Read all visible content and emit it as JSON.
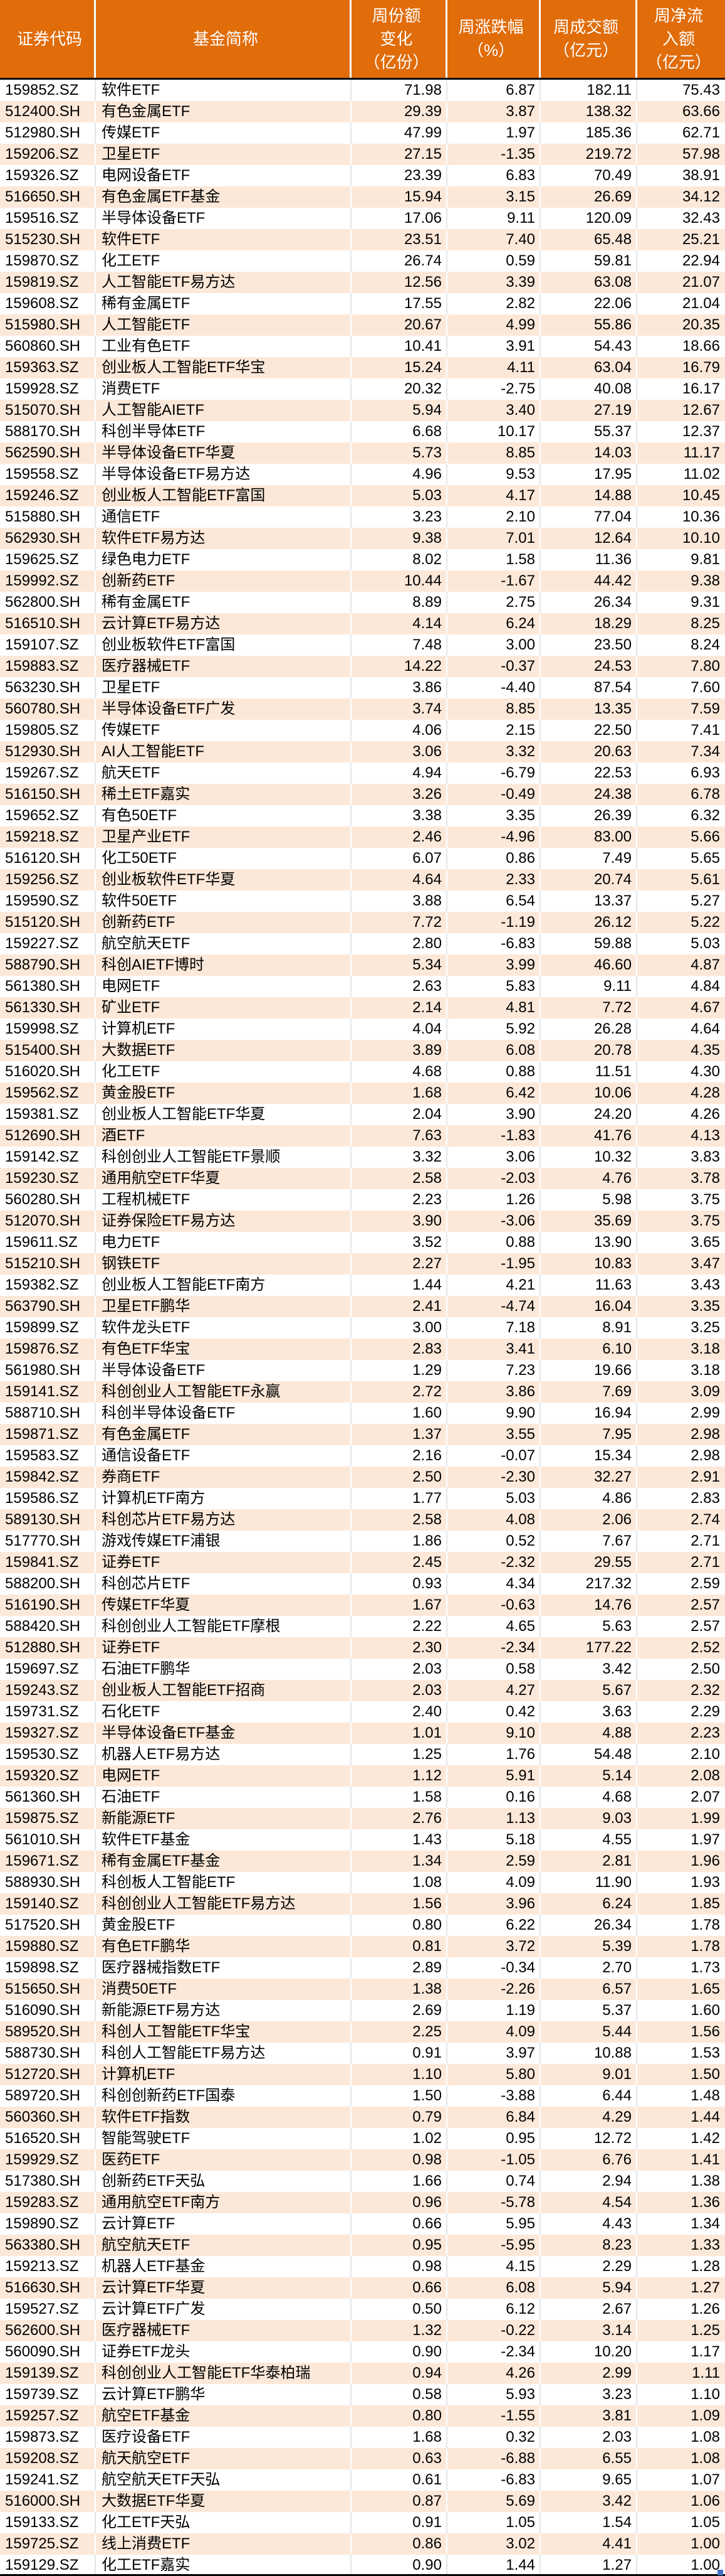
{
  "colors": {
    "header_bg": "#E06C0A",
    "header_text": "#FFFFFF",
    "row_odd_bg": "#FFFFFF",
    "row_even_bg": "#FCE8D9",
    "text": "#000000",
    "grid_line_on_peach": "#FFFFFF",
    "grid_line_on_white": "#E6E6E6",
    "header_divider": "#000000",
    "bottom_border": "#000000",
    "selection_handle": "#4472C4"
  },
  "table": {
    "columns": [
      {
        "id": "code",
        "lines": [
          "证券代码"
        ]
      },
      {
        "id": "name",
        "lines": [
          "基金简称"
        ]
      },
      {
        "id": "share_change",
        "lines": [
          "周份额",
          "变化",
          "（亿份）"
        ]
      },
      {
        "id": "pct_change",
        "lines": [
          "周涨跌幅",
          "（%）"
        ]
      },
      {
        "id": "turnover",
        "lines": [
          "周成交额",
          "（亿元）"
        ]
      },
      {
        "id": "net_inflow",
        "lines": [
          "周净流",
          "入额",
          "（亿元）"
        ]
      }
    ],
    "rows": [
      [
        "159852.SZ",
        "软件ETF",
        "71.98",
        "6.87",
        "182.11",
        "75.43"
      ],
      [
        "512400.SH",
        "有色金属ETF",
        "29.39",
        "3.87",
        "138.32",
        "63.66"
      ],
      [
        "512980.SH",
        "传媒ETF",
        "47.99",
        "1.97",
        "185.36",
        "62.71"
      ],
      [
        "159206.SZ",
        "卫星ETF",
        "27.15",
        "-1.35",
        "219.72",
        "57.98"
      ],
      [
        "159326.SZ",
        "电网设备ETF",
        "23.39",
        "6.83",
        "70.49",
        "38.91"
      ],
      [
        "516650.SH",
        "有色金属ETF基金",
        "15.94",
        "3.15",
        "26.69",
        "34.12"
      ],
      [
        "159516.SZ",
        "半导体设备ETF",
        "17.06",
        "9.11",
        "120.09",
        "32.43"
      ],
      [
        "515230.SH",
        "软件ETF",
        "23.51",
        "7.40",
        "65.48",
        "25.21"
      ],
      [
        "159870.SZ",
        "化工ETF",
        "26.74",
        "0.59",
        "59.81",
        "22.94"
      ],
      [
        "159819.SZ",
        "人工智能ETF易方达",
        "12.56",
        "3.39",
        "63.08",
        "21.07"
      ],
      [
        "159608.SZ",
        "稀有金属ETF",
        "17.55",
        "2.82",
        "22.06",
        "21.04"
      ],
      [
        "515980.SH",
        "人工智能ETF",
        "20.67",
        "4.99",
        "55.86",
        "20.35"
      ],
      [
        "560860.SH",
        "工业有色ETF",
        "10.41",
        "3.91",
        "54.43",
        "18.66"
      ],
      [
        "159363.SZ",
        "创业板人工智能ETF华宝",
        "15.24",
        "4.11",
        "63.04",
        "16.79"
      ],
      [
        "159928.SZ",
        "消费ETF",
        "20.32",
        "-2.75",
        "40.08",
        "16.17"
      ],
      [
        "515070.SH",
        "人工智能AIETF",
        "5.94",
        "3.40",
        "27.19",
        "12.67"
      ],
      [
        "588170.SH",
        "科创半导体ETF",
        "6.68",
        "10.17",
        "55.37",
        "12.37"
      ],
      [
        "562590.SH",
        "半导体设备ETF华夏",
        "5.73",
        "8.85",
        "14.03",
        "11.17"
      ],
      [
        "159558.SZ",
        "半导体设备ETF易方达",
        "4.96",
        "9.53",
        "17.95",
        "11.02"
      ],
      [
        "159246.SZ",
        "创业板人工智能ETF富国",
        "5.03",
        "4.17",
        "14.88",
        "10.45"
      ],
      [
        "515880.SH",
        "通信ETF",
        "3.23",
        "2.10",
        "77.04",
        "10.36"
      ],
      [
        "562930.SH",
        "软件ETF易方达",
        "9.38",
        "7.01",
        "12.64",
        "10.10"
      ],
      [
        "159625.SZ",
        "绿色电力ETF",
        "8.02",
        "1.58",
        "11.36",
        "9.81"
      ],
      [
        "159992.SZ",
        "创新药ETF",
        "10.44",
        "-1.67",
        "44.42",
        "9.38"
      ],
      [
        "562800.SH",
        "稀有金属ETF",
        "8.89",
        "2.75",
        "26.34",
        "9.31"
      ],
      [
        "516510.SH",
        "云计算ETF易方达",
        "4.14",
        "6.24",
        "18.29",
        "8.25"
      ],
      [
        "159107.SZ",
        "创业板软件ETF富国",
        "7.48",
        "3.00",
        "23.50",
        "8.24"
      ],
      [
        "159883.SZ",
        "医疗器械ETF",
        "14.22",
        "-0.37",
        "24.53",
        "7.80"
      ],
      [
        "563230.SH",
        "卫星ETF",
        "3.86",
        "-4.40",
        "87.54",
        "7.60"
      ],
      [
        "560780.SH",
        "半导体设备ETF广发",
        "3.74",
        "8.85",
        "13.35",
        "7.59"
      ],
      [
        "159805.SZ",
        "传媒ETF",
        "4.06",
        "2.15",
        "22.50",
        "7.41"
      ],
      [
        "512930.SH",
        "AI人工智能ETF",
        "3.06",
        "3.32",
        "20.63",
        "7.34"
      ],
      [
        "159267.SZ",
        "航天ETF",
        "4.94",
        "-6.79",
        "22.53",
        "6.93"
      ],
      [
        "516150.SH",
        "稀土ETF嘉实",
        "3.26",
        "-0.49",
        "24.38",
        "6.78"
      ],
      [
        "159652.SZ",
        "有色50ETF",
        "3.38",
        "3.35",
        "26.39",
        "6.32"
      ],
      [
        "159218.SZ",
        "卫星产业ETF",
        "2.46",
        "-4.96",
        "83.00",
        "5.66"
      ],
      [
        "516120.SH",
        "化工50ETF",
        "6.07",
        "0.86",
        "7.49",
        "5.65"
      ],
      [
        "159256.SZ",
        "创业板软件ETF华夏",
        "4.64",
        "2.33",
        "20.74",
        "5.61"
      ],
      [
        "159590.SZ",
        "软件50ETF",
        "3.88",
        "6.54",
        "13.37",
        "5.27"
      ],
      [
        "515120.SH",
        "创新药ETF",
        "7.72",
        "-1.19",
        "26.12",
        "5.22"
      ],
      [
        "159227.SZ",
        "航空航天ETF",
        "2.80",
        "-6.83",
        "59.88",
        "5.03"
      ],
      [
        "588790.SH",
        "科创AIETF博时",
        "5.34",
        "3.99",
        "46.60",
        "4.87"
      ],
      [
        "561380.SH",
        "电网ETF",
        "2.63",
        "5.83",
        "9.11",
        "4.84"
      ],
      [
        "561330.SH",
        "矿业ETF",
        "2.14",
        "4.81",
        "7.72",
        "4.67"
      ],
      [
        "159998.SZ",
        "计算机ETF",
        "4.04",
        "5.92",
        "26.28",
        "4.64"
      ],
      [
        "515400.SH",
        "大数据ETF",
        "3.89",
        "6.08",
        "20.78",
        "4.35"
      ],
      [
        "516020.SH",
        "化工ETF",
        "4.68",
        "0.88",
        "11.51",
        "4.30"
      ],
      [
        "159562.SZ",
        "黄金股ETF",
        "1.68",
        "6.42",
        "10.06",
        "4.28"
      ],
      [
        "159381.SZ",
        "创业板人工智能ETF华夏",
        "2.04",
        "3.90",
        "24.20",
        "4.26"
      ],
      [
        "512690.SH",
        "酒ETF",
        "7.63",
        "-1.83",
        "41.76",
        "4.13"
      ],
      [
        "159142.SZ",
        "科创创业人工智能ETF景顺",
        "3.32",
        "3.06",
        "10.32",
        "3.83"
      ],
      [
        "159230.SZ",
        "通用航空ETF华夏",
        "2.58",
        "-2.03",
        "4.76",
        "3.78"
      ],
      [
        "560280.SH",
        "工程机械ETF",
        "2.23",
        "1.26",
        "5.98",
        "3.75"
      ],
      [
        "512070.SH",
        "证券保险ETF易方达",
        "3.90",
        "-3.06",
        "35.69",
        "3.75"
      ],
      [
        "159611.SZ",
        "电力ETF",
        "3.52",
        "0.88",
        "13.90",
        "3.65"
      ],
      [
        "515210.SH",
        "钢铁ETF",
        "2.27",
        "-1.95",
        "10.83",
        "3.47"
      ],
      [
        "159382.SZ",
        "创业板人工智能ETF南方",
        "1.44",
        "4.21",
        "11.63",
        "3.43"
      ],
      [
        "563790.SH",
        "卫星ETF鹏华",
        "2.41",
        "-4.74",
        "16.04",
        "3.35"
      ],
      [
        "159899.SZ",
        "软件龙头ETF",
        "3.00",
        "7.18",
        "8.91",
        "3.25"
      ],
      [
        "159876.SZ",
        "有色ETF华宝",
        "2.83",
        "3.41",
        "6.10",
        "3.18"
      ],
      [
        "561980.SH",
        "半导体设备ETF",
        "1.29",
        "7.23",
        "19.66",
        "3.18"
      ],
      [
        "159141.SZ",
        "科创创业人工智能ETF永赢",
        "2.72",
        "3.86",
        "7.69",
        "3.09"
      ],
      [
        "588710.SH",
        "科创半导体设备ETF",
        "1.60",
        "9.90",
        "16.94",
        "2.99"
      ],
      [
        "159871.SZ",
        "有色金属ETF",
        "1.37",
        "3.55",
        "7.95",
        "2.98"
      ],
      [
        "159583.SZ",
        "通信设备ETF",
        "2.16",
        "-0.07",
        "15.34",
        "2.98"
      ],
      [
        "159842.SZ",
        "券商ETF",
        "2.50",
        "-2.30",
        "32.27",
        "2.91"
      ],
      [
        "159586.SZ",
        "计算机ETF南方",
        "1.77",
        "5.03",
        "4.86",
        "2.83"
      ],
      [
        "589130.SH",
        "科创芯片ETF易方达",
        "2.58",
        "4.08",
        "2.06",
        "2.74"
      ],
      [
        "517770.SH",
        "游戏传媒ETF浦银",
        "1.86",
        "0.52",
        "7.67",
        "2.71"
      ],
      [
        "159841.SZ",
        "证券ETF",
        "2.45",
        "-2.32",
        "29.55",
        "2.71"
      ],
      [
        "588200.SH",
        "科创芯片ETF",
        "0.93",
        "4.34",
        "217.32",
        "2.59"
      ],
      [
        "516190.SH",
        "传媒ETF华夏",
        "1.67",
        "-0.63",
        "14.76",
        "2.57"
      ],
      [
        "588420.SH",
        "科创创业人工智能ETF摩根",
        "2.22",
        "4.65",
        "5.63",
        "2.57"
      ],
      [
        "512880.SH",
        "证券ETF",
        "2.30",
        "-2.34",
        "177.22",
        "2.52"
      ],
      [
        "159697.SZ",
        "石油ETF鹏华",
        "2.03",
        "0.58",
        "3.42",
        "2.50"
      ],
      [
        "159243.SZ",
        "创业板人工智能ETF招商",
        "2.03",
        "4.27",
        "5.67",
        "2.32"
      ],
      [
        "159731.SZ",
        "石化ETF",
        "2.40",
        "0.42",
        "3.63",
        "2.29"
      ],
      [
        "159327.SZ",
        "半导体设备ETF基金",
        "1.01",
        "9.10",
        "4.88",
        "2.23"
      ],
      [
        "159530.SZ",
        "机器人ETF易方达",
        "1.25",
        "1.76",
        "54.48",
        "2.10"
      ],
      [
        "159320.SZ",
        "电网ETF",
        "1.12",
        "5.91",
        "5.14",
        "2.08"
      ],
      [
        "561360.SH",
        "石油ETF",
        "1.58",
        "0.16",
        "4.68",
        "2.07"
      ],
      [
        "159875.SZ",
        "新能源ETF",
        "2.76",
        "1.13",
        "9.03",
        "1.99"
      ],
      [
        "561010.SH",
        "软件ETF基金",
        "1.43",
        "5.18",
        "4.55",
        "1.97"
      ],
      [
        "159671.SZ",
        "稀有金属ETF基金",
        "1.34",
        "2.59",
        "2.81",
        "1.96"
      ],
      [
        "588930.SH",
        "科创板人工智能ETF",
        "1.08",
        "4.09",
        "11.90",
        "1.93"
      ],
      [
        "159140.SZ",
        "科创创业人工智能ETF易方达",
        "1.56",
        "3.96",
        "6.24",
        "1.85"
      ],
      [
        "517520.SH",
        "黄金股ETF",
        "0.80",
        "6.22",
        "26.34",
        "1.78"
      ],
      [
        "159880.SZ",
        "有色ETF鹏华",
        "0.81",
        "3.72",
        "5.39",
        "1.78"
      ],
      [
        "159898.SZ",
        "医疗器械指数ETF",
        "2.89",
        "-0.34",
        "2.70",
        "1.73"
      ],
      [
        "515650.SH",
        "消费50ETF",
        "1.38",
        "-2.26",
        "6.57",
        "1.65"
      ],
      [
        "516090.SH",
        "新能源ETF易方达",
        "2.69",
        "1.19",
        "5.37",
        "1.60"
      ],
      [
        "589520.SH",
        "科创人工智能ETF华宝",
        "2.25",
        "4.09",
        "5.44",
        "1.56"
      ],
      [
        "588730.SH",
        "科创人工智能ETF易方达",
        "0.91",
        "3.97",
        "10.88",
        "1.53"
      ],
      [
        "512720.SH",
        "计算机ETF",
        "1.10",
        "5.80",
        "9.01",
        "1.50"
      ],
      [
        "589720.SH",
        "科创创新药ETF国泰",
        "1.50",
        "-3.88",
        "6.44",
        "1.48"
      ],
      [
        "560360.SH",
        "软件ETF指数",
        "0.79",
        "6.84",
        "4.29",
        "1.44"
      ],
      [
        "516520.SH",
        "智能驾驶ETF",
        "1.02",
        "0.95",
        "12.72",
        "1.42"
      ],
      [
        "159929.SZ",
        "医药ETF",
        "0.98",
        "-1.05",
        "6.76",
        "1.41"
      ],
      [
        "517380.SH",
        "创新药ETF天弘",
        "1.66",
        "0.74",
        "2.94",
        "1.38"
      ],
      [
        "159283.SZ",
        "通用航空ETF南方",
        "0.96",
        "-5.78",
        "4.54",
        "1.36"
      ],
      [
        "159890.SZ",
        "云计算ETF",
        "0.66",
        "5.95",
        "4.43",
        "1.34"
      ],
      [
        "563380.SH",
        "航空航天ETF",
        "0.95",
        "-5.95",
        "8.23",
        "1.33"
      ],
      [
        "159213.SZ",
        "机器人ETF基金",
        "0.98",
        "4.15",
        "2.29",
        "1.28"
      ],
      [
        "516630.SH",
        "云计算ETF华夏",
        "0.66",
        "6.08",
        "5.94",
        "1.27"
      ],
      [
        "159527.SZ",
        "云计算ETF广发",
        "0.50",
        "6.12",
        "2.67",
        "1.26"
      ],
      [
        "562600.SH",
        "医疗器械ETF",
        "1.32",
        "-0.22",
        "3.14",
        "1.25"
      ],
      [
        "560090.SH",
        "证券ETF龙头",
        "0.90",
        "-2.34",
        "10.20",
        "1.17"
      ],
      [
        "159139.SZ",
        "科创创业人工智能ETF华泰柏瑞",
        "0.94",
        "4.26",
        "2.99",
        "1.11"
      ],
      [
        "159739.SZ",
        "云计算ETF鹏华",
        "0.58",
        "5.93",
        "3.23",
        "1.10"
      ],
      [
        "159257.SZ",
        "航空ETF基金",
        "0.80",
        "-1.55",
        "3.81",
        "1.09"
      ],
      [
        "159873.SZ",
        "医疗设备ETF",
        "1.68",
        "0.32",
        "2.03",
        "1.08"
      ],
      [
        "159208.SZ",
        "航天航空ETF",
        "0.63",
        "-6.88",
        "6.55",
        "1.08"
      ],
      [
        "159241.SZ",
        "航空航天ETF天弘",
        "0.61",
        "-6.83",
        "9.65",
        "1.07"
      ],
      [
        "516000.SH",
        "大数据ETF华夏",
        "0.87",
        "5.69",
        "3.42",
        "1.06"
      ],
      [
        "159133.SZ",
        "化工ETF天弘",
        "0.91",
        "1.05",
        "1.54",
        "1.05"
      ],
      [
        "159725.SZ",
        "线上消费ETF",
        "0.86",
        "3.02",
        "4.41",
        "1.00"
      ],
      [
        "159129.SZ",
        "化工ETF嘉实",
        "0.90",
        "1.44",
        "1.27",
        "1.00"
      ]
    ]
  }
}
